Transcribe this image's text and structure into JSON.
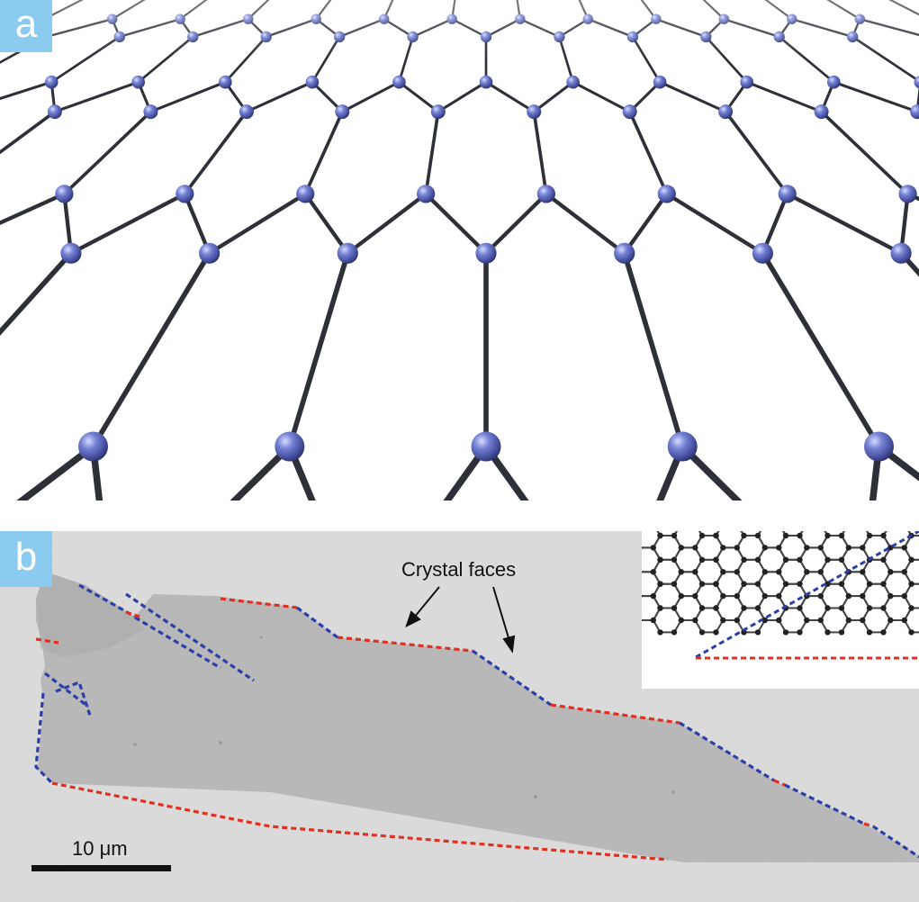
{
  "panel_a": {
    "label": "a",
    "colors": {
      "atom": "#6f7fd0",
      "atom_dark": "#3a4290",
      "bond": "#2e3038",
      "background": "#ffffff",
      "label_bg": "#8ccbf0"
    }
  },
  "panel_b": {
    "label": "b",
    "annotation": "Crystal faces",
    "scale_bar": "10 μm",
    "colors": {
      "zigzag_edge": "#2b3fa6",
      "armchair_edge": "#e03020",
      "flake": "#b9b9b9",
      "substrate": "#dcdcdc"
    }
  }
}
